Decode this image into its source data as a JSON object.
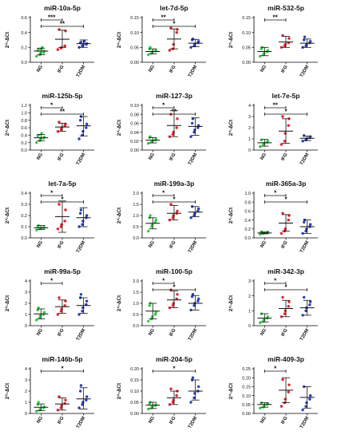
{
  "figure": {
    "group_labels": [
      "NG",
      "IFG",
      "T2DM"
    ],
    "group_colors": [
      "#2ecc40",
      "#e8202a",
      "#2a3fb3"
    ],
    "y_axis_label": "2^-∆Ct"
  },
  "chart_data": [
    {
      "type": "scatter",
      "title": "miR-10a-5p",
      "ylim": [
        0,
        0.6
      ],
      "yticks": [
        "0.0",
        "0.2",
        "0.4",
        "0.6"
      ],
      "groups": [
        {
          "name": "NG",
          "points": [
            0.08,
            0.1,
            0.12,
            0.13,
            0.15,
            0.16,
            0.17,
            0.18,
            0.2
          ],
          "mean": 0.15,
          "err": [
            0.1,
            0.19
          ]
        },
        {
          "name": "IFG",
          "points": [
            0.17,
            0.19,
            0.2,
            0.22,
            0.42,
            0.44
          ],
          "mean": 0.31,
          "err": [
            0.2,
            0.43
          ]
        },
        {
          "name": "T2DM",
          "points": [
            0.2,
            0.22,
            0.23,
            0.24,
            0.25,
            0.26,
            0.27,
            0.28
          ],
          "mean": 0.25,
          "err": [
            0.2,
            0.3
          ]
        }
      ],
      "significance": [
        {
          "from": "NG",
          "to": "IFG",
          "label": "***"
        },
        {
          "from": "NG",
          "to": "T2DM",
          "label": "**"
        }
      ]
    },
    {
      "type": "scatter",
      "title": "let-7d-5p",
      "ylim": [
        0,
        0.15
      ],
      "yticks": [
        "0.00",
        "0.05",
        "0.10",
        "0.15"
      ],
      "groups": [
        {
          "name": "NG",
          "points": [
            0.025,
            0.03,
            0.035,
            0.037,
            0.04,
            0.045,
            0.05
          ],
          "mean": 0.036,
          "err": [
            0.028,
            0.045
          ]
        },
        {
          "name": "IFG",
          "points": [
            0.04,
            0.045,
            0.06,
            0.1,
            0.11,
            0.115
          ],
          "mean": 0.078,
          "err": [
            0.045,
            0.112
          ]
        },
        {
          "name": "T2DM",
          "points": [
            0.05,
            0.055,
            0.06,
            0.065,
            0.07,
            0.075,
            0.078
          ],
          "mean": 0.064,
          "err": [
            0.052,
            0.077
          ]
        }
      ],
      "significance": [
        {
          "from": "NG",
          "to": "IFG",
          "label": "**"
        },
        {
          "from": "NG",
          "to": "T2DM",
          "label": "*"
        }
      ]
    },
    {
      "type": "scatter",
      "title": "miR-532-5p",
      "ylim": [
        0,
        0.15
      ],
      "yticks": [
        "0.00",
        "0.05",
        "0.10",
        "0.15"
      ],
      "groups": [
        {
          "name": "NG",
          "points": [
            0.02,
            0.025,
            0.03,
            0.035,
            0.04,
            0.045,
            0.05
          ],
          "mean": 0.036,
          "err": [
            0.022,
            0.05
          ]
        },
        {
          "name": "IFG",
          "points": [
            0.05,
            0.055,
            0.06,
            0.065,
            0.08,
            0.09
          ],
          "mean": 0.068,
          "err": [
            0.05,
            0.087
          ]
        },
        {
          "name": "T2DM",
          "points": [
            0.05,
            0.055,
            0.06,
            0.065,
            0.07,
            0.075,
            0.085
          ],
          "mean": 0.064,
          "err": [
            0.05,
            0.078
          ]
        }
      ],
      "significance": [
        {
          "from": "NG",
          "to": "IFG",
          "label": "**"
        }
      ]
    },
    {
      "type": "scatter",
      "title": "miR-125b-5p",
      "ylim": [
        0,
        1.2
      ],
      "yticks": [
        "0.0",
        "0.2",
        "0.4",
        "0.6",
        "0.8",
        "1.0",
        "1.2"
      ],
      "groups": [
        {
          "name": "NG",
          "points": [
            0.2,
            0.25,
            0.3,
            0.32,
            0.35,
            0.38,
            0.4,
            0.45
          ],
          "mean": 0.33,
          "err": [
            0.25,
            0.42
          ]
        },
        {
          "name": "IFG",
          "points": [
            0.5,
            0.55,
            0.6,
            0.65,
            0.7,
            0.75
          ],
          "mean": 0.62,
          "err": [
            0.5,
            0.72
          ]
        },
        {
          "name": "T2DM",
          "points": [
            0.3,
            0.4,
            0.5,
            0.6,
            0.7,
            0.8,
            0.9
          ],
          "mean": 0.65,
          "err": [
            0.38,
            0.9
          ]
        }
      ],
      "significance": [
        {
          "from": "NG",
          "to": "IFG",
          "label": "*"
        },
        {
          "from": "NG",
          "to": "T2DM",
          "label": "**"
        }
      ]
    },
    {
      "type": "scatter",
      "title": "miR-127-3p",
      "ylim": [
        0,
        0.1
      ],
      "yticks": [
        "0.00",
        "0.02",
        "0.04",
        "0.06",
        "0.08",
        "0.10"
      ],
      "groups": [
        {
          "name": "NG",
          "points": [
            0.015,
            0.018,
            0.02,
            0.022,
            0.025,
            0.028,
            0.03
          ],
          "mean": 0.022,
          "err": [
            0.016,
            0.028
          ]
        },
        {
          "name": "IFG",
          "points": [
            0.03,
            0.035,
            0.04,
            0.05,
            0.07,
            0.08
          ],
          "mean": 0.055,
          "err": [
            0.03,
            0.088
          ]
        },
        {
          "name": "T2DM",
          "points": [
            0.03,
            0.04,
            0.045,
            0.05,
            0.055,
            0.06,
            0.07
          ],
          "mean": 0.053,
          "err": [
            0.033,
            0.072
          ]
        }
      ],
      "significance": [
        {
          "from": "NG",
          "to": "IFG",
          "label": "*"
        },
        {
          "from": "NG",
          "to": "T2DM",
          "label": "**"
        }
      ]
    },
    {
      "type": "scatter",
      "title": "let-7e-5p",
      "ylim": [
        0,
        4
      ],
      "yticks": [
        "0",
        "1",
        "2",
        "3",
        "4"
      ],
      "groups": [
        {
          "name": "NG",
          "points": [
            0.3,
            0.5,
            0.6,
            0.7,
            0.8,
            0.9
          ],
          "mean": 0.65,
          "err": [
            0.35,
            0.95
          ]
        },
        {
          "name": "IFG",
          "points": [
            0.5,
            0.8,
            1.5,
            2.2,
            2.8,
            3.0
          ],
          "mean": 1.7,
          "err": [
            0.6,
            2.8
          ]
        },
        {
          "name": "T2DM",
          "points": [
            0.8,
            0.9,
            1.0,
            1.1,
            1.2,
            1.3
          ],
          "mean": 1.05,
          "err": [
            0.85,
            1.25
          ]
        }
      ],
      "significance": [
        {
          "from": "NG",
          "to": "IFG",
          "label": "**"
        },
        {
          "from": "NG",
          "to": "T2DM",
          "label": "*"
        }
      ]
    },
    {
      "type": "scatter",
      "title": "let-7a-5p",
      "ylim": [
        0,
        0.4
      ],
      "yticks": [
        "0.0",
        "0.1",
        "0.2",
        "0.3",
        "0.4"
      ],
      "groups": [
        {
          "name": "NG",
          "points": [
            0.07,
            0.08,
            0.085,
            0.09,
            0.095,
            0.1,
            0.11
          ],
          "mean": 0.09,
          "err": [
            0.075,
            0.11
          ]
        },
        {
          "name": "IFG",
          "points": [
            0.08,
            0.1,
            0.12,
            0.15,
            0.25,
            0.3
          ],
          "mean": 0.19,
          "err": [
            0.05,
            0.33
          ]
        },
        {
          "name": "T2DM",
          "points": [
            0.1,
            0.12,
            0.15,
            0.18,
            0.2,
            0.22,
            0.25
          ],
          "mean": 0.18,
          "err": [
            0.1,
            0.27
          ]
        }
      ],
      "significance": [
        {
          "from": "NG",
          "to": "IFG",
          "label": "*"
        },
        {
          "from": "NG",
          "to": "T2DM",
          "label": "*"
        }
      ]
    },
    {
      "type": "scatter",
      "title": "miR-199a-3p",
      "ylim": [
        0,
        2.0
      ],
      "yticks": [
        "0.0",
        "0.5",
        "1.0",
        "1.5",
        "2.0"
      ],
      "groups": [
        {
          "name": "NG",
          "points": [
            0.3,
            0.5,
            0.6,
            0.7,
            0.8,
            0.9,
            1.0
          ],
          "mean": 0.65,
          "err": [
            0.4,
            0.9
          ]
        },
        {
          "name": "IFG",
          "points": [
            0.8,
            0.9,
            1.0,
            1.1,
            1.2,
            1.5
          ],
          "mean": 1.1,
          "err": [
            0.8,
            1.45
          ]
        },
        {
          "name": "T2DM",
          "points": [
            0.9,
            1.0,
            1.1,
            1.2,
            1.3,
            1.4
          ],
          "mean": 1.15,
          "err": [
            0.95,
            1.4
          ]
        }
      ],
      "significance": [
        {
          "from": "NG",
          "to": "IFG",
          "label": "*"
        },
        {
          "from": "NG",
          "to": "T2DM",
          "label": "*"
        }
      ]
    },
    {
      "type": "scatter",
      "title": "miR-365a-3p",
      "ylim": [
        0,
        1.0
      ],
      "yticks": [
        "0.0",
        "0.2",
        "0.4",
        "0.6",
        "0.8",
        "1.0"
      ],
      "groups": [
        {
          "name": "NG",
          "points": [
            0.08,
            0.1,
            0.11,
            0.12,
            0.13,
            0.14
          ],
          "mean": 0.11,
          "err": [
            0.09,
            0.13
          ]
        },
        {
          "name": "IFG",
          "points": [
            0.1,
            0.15,
            0.2,
            0.4,
            0.5,
            0.55
          ],
          "mean": 0.33,
          "err": [
            0.15,
            0.52
          ]
        },
        {
          "name": "T2DM",
          "points": [
            0.1,
            0.15,
            0.2,
            0.25,
            0.3,
            0.35,
            0.4
          ],
          "mean": 0.25,
          "err": [
            0.1,
            0.4
          ]
        }
      ],
      "significance": [
        {
          "from": "NG",
          "to": "IFG",
          "label": "*"
        },
        {
          "from": "NG",
          "to": "T2DM",
          "label": "*"
        }
      ]
    },
    {
      "type": "scatter",
      "title": "miR-99a-5p",
      "ylim": [
        0,
        4
      ],
      "yticks": [
        "0",
        "1",
        "2",
        "3",
        "4"
      ],
      "groups": [
        {
          "name": "NG",
          "points": [
            0.5,
            0.7,
            0.9,
            1.0,
            1.2,
            1.4,
            1.6
          ],
          "mean": 1.05,
          "err": [
            0.6,
            1.5
          ]
        },
        {
          "name": "IFG",
          "points": [
            1.0,
            1.3,
            1.5,
            1.8,
            2.2,
            2.5
          ],
          "mean": 1.7,
          "err": [
            1.1,
            2.3
          ]
        },
        {
          "name": "T2DM",
          "points": [
            1.0,
            1.3,
            1.6,
            1.9,
            2.2,
            2.5,
            2.8
          ],
          "mean": 1.8,
          "err": [
            1.1,
            2.5
          ]
        }
      ],
      "significance": [
        {
          "from": "NG",
          "to": "IFG",
          "label": "*"
        }
      ]
    },
    {
      "type": "scatter",
      "title": "miR-100-5p",
      "ylim": [
        0,
        2.0
      ],
      "yticks": [
        "0.0",
        "0.5",
        "1.0",
        "1.5",
        "2.0"
      ],
      "groups": [
        {
          "name": "NG",
          "points": [
            0.2,
            0.3,
            0.4,
            0.5,
            0.6,
            0.9,
            1.0
          ],
          "mean": 0.65,
          "err": [
            0.3,
            1.0
          ]
        },
        {
          "name": "IFG",
          "points": [
            0.8,
            0.9,
            1.0,
            1.2,
            1.4,
            1.6
          ],
          "mean": 1.15,
          "err": [
            0.8,
            1.55
          ]
        },
        {
          "name": "T2DM",
          "points": [
            0.7,
            0.9,
            1.0,
            1.1,
            1.2,
            1.3,
            1.4
          ],
          "mean": 1.0,
          "err": [
            0.7,
            1.35
          ]
        }
      ],
      "significance": [
        {
          "from": "NG",
          "to": "IFG",
          "label": "*"
        },
        {
          "from": "NG",
          "to": "T2DM",
          "label": "*"
        }
      ]
    },
    {
      "type": "scatter",
      "title": "miR-342-3p",
      "ylim": [
        0,
        3
      ],
      "yticks": [
        "0",
        "1",
        "2",
        "3"
      ],
      "groups": [
        {
          "name": "NG",
          "points": [
            0.2,
            0.3,
            0.4,
            0.5,
            0.6,
            0.8
          ],
          "mean": 0.5,
          "err": [
            0.25,
            0.8
          ]
        },
        {
          "name": "IFG",
          "points": [
            0.6,
            0.8,
            1.0,
            1.3,
            1.6,
            1.9
          ],
          "mean": 1.15,
          "err": [
            0.6,
            1.7
          ]
        },
        {
          "name": "T2DM",
          "points": [
            0.7,
            1.0,
            1.2,
            1.4,
            1.6,
            1.9
          ],
          "mean": 1.2,
          "err": [
            0.7,
            1.7
          ]
        }
      ],
      "significance": [
        {
          "from": "NG",
          "to": "IFG",
          "label": "*"
        },
        {
          "from": "NG",
          "to": "T2DM",
          "label": "*"
        }
      ]
    },
    {
      "type": "scatter",
      "title": "miR-146b-5p",
      "ylim": [
        0,
        4
      ],
      "yticks": [
        "0",
        "1",
        "2",
        "3",
        "4"
      ],
      "groups": [
        {
          "name": "NG",
          "points": [
            0.2,
            0.3,
            0.4,
            0.5,
            0.6,
            0.8,
            1.0
          ],
          "mean": 0.55,
          "err": [
            0.25,
            0.85
          ]
        },
        {
          "name": "IFG",
          "points": [
            0.3,
            0.5,
            0.7,
            0.9,
            1.2,
            1.5
          ],
          "mean": 0.85,
          "err": [
            0.3,
            1.4
          ]
        },
        {
          "name": "T2DM",
          "points": [
            0.5,
            0.8,
            1.0,
            1.2,
            1.5,
            2.0,
            2.5
          ],
          "mean": 1.3,
          "err": [
            0.4,
            2.3
          ]
        }
      ],
      "significance": [
        {
          "from": "NG",
          "to": "T2DM",
          "label": "*"
        }
      ]
    },
    {
      "type": "scatter",
      "title": "miR-204-5p",
      "ylim": [
        0,
        0.2
      ],
      "yticks": [
        "0.00",
        "0.05",
        "0.10",
        "0.15",
        "0.20"
      ],
      "groups": [
        {
          "name": "NG",
          "points": [
            0.02,
            0.025,
            0.03,
            0.035,
            0.04,
            0.045,
            0.05
          ],
          "mean": 0.037,
          "err": [
            0.022,
            0.05
          ]
        },
        {
          "name": "IFG",
          "points": [
            0.04,
            0.05,
            0.06,
            0.08,
            0.1,
            0.11
          ],
          "mean": 0.07,
          "err": [
            0.04,
            0.1
          ]
        },
        {
          "name": "T2DM",
          "points": [
            0.05,
            0.07,
            0.09,
            0.1,
            0.12,
            0.15,
            0.16
          ],
          "mean": 0.1,
          "err": [
            0.06,
            0.15
          ]
        }
      ],
      "significance": [
        {
          "from": "NG",
          "to": "T2DM",
          "label": "*"
        }
      ]
    },
    {
      "type": "scatter",
      "title": "miR-409-3p",
      "ylim": [
        0,
        0.25
      ],
      "yticks": [
        "0.00",
        "0.05",
        "0.10",
        "0.15",
        "0.20",
        "0.25"
      ],
      "groups": [
        {
          "name": "NG",
          "points": [
            0.03,
            0.035,
            0.04,
            0.05,
            0.055,
            0.06
          ],
          "mean": 0.05,
          "err": [
            0.035,
            0.06
          ]
        },
        {
          "name": "IFG",
          "points": [
            0.04,
            0.06,
            0.08,
            0.12,
            0.16,
            0.19
          ],
          "mean": 0.13,
          "err": [
            0.06,
            0.2
          ]
        },
        {
          "name": "T2DM",
          "points": [
            0.02,
            0.04,
            0.06,
            0.08,
            0.1,
            0.15
          ],
          "mean": 0.09,
          "err": [
            0.03,
            0.15
          ]
        }
      ],
      "significance": [
        {
          "from": "NG",
          "to": "IFG",
          "label": "*"
        }
      ]
    }
  ]
}
